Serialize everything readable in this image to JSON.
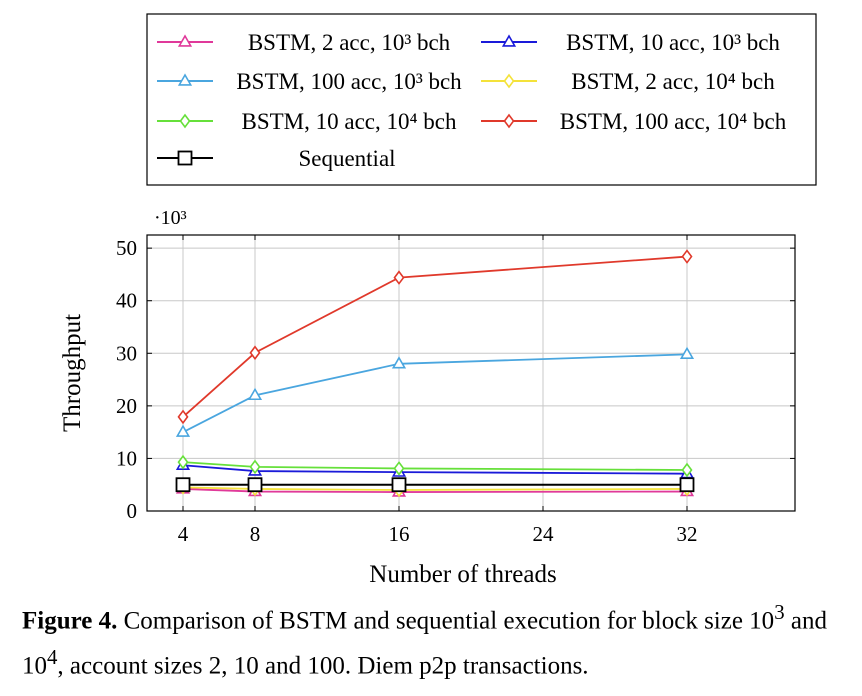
{
  "chart_data": {
    "type": "line",
    "xlabel": "Number of threads",
    "ylabel": "Throughput",
    "y_multiplier": "·10³",
    "x_ticks": [
      4,
      8,
      16,
      24,
      32
    ],
    "y_ticks": [
      0,
      10,
      20,
      30,
      40,
      50
    ],
    "xlim": [
      2,
      38
    ],
    "ylim": [
      0,
      52.5
    ],
    "grid": true,
    "legend_position": "top",
    "x": [
      4,
      8,
      16,
      32
    ],
    "series": [
      {
        "name": "BSTM, 2 acc, 10³ bch",
        "color": "#e0399a",
        "marker": "triangle",
        "values": [
          4.2,
          3.7,
          3.6,
          3.7
        ]
      },
      {
        "name": "BSTM, 10 acc, 10³ bch",
        "color": "#1a1ad9",
        "marker": "triangle",
        "values": [
          8.7,
          7.6,
          7.4,
          7.1
        ]
      },
      {
        "name": "BSTM, 100 acc, 10³ bch",
        "color": "#4aa6df",
        "marker": "triangle",
        "values": [
          15.0,
          22.0,
          28.0,
          29.8
        ]
      },
      {
        "name": "BSTM, 2 acc, 10⁴ bch",
        "color": "#f4e23a",
        "marker": "diamond",
        "values": [
          4.5,
          4.2,
          4.0,
          4.2
        ]
      },
      {
        "name": "BSTM, 10 acc, 10⁴ bch",
        "color": "#66e03a",
        "marker": "diamond",
        "values": [
          9.3,
          8.4,
          8.1,
          7.8
        ]
      },
      {
        "name": "BSTM, 100 acc, 10⁴ bch",
        "color": "#e0392b",
        "marker": "diamond",
        "values": [
          17.9,
          30.1,
          44.4,
          48.4
        ]
      },
      {
        "name": "Sequential",
        "color": "#000000",
        "marker": "square",
        "values": [
          5.0,
          5.0,
          5.0,
          5.0
        ]
      }
    ]
  },
  "caption": {
    "label": "Figure 4.",
    "text_a": " Comparison of BSTM and sequential execution for block size 10",
    "sup_a": "3",
    "text_b": " and 10",
    "sup_b": "4",
    "text_c": ", account sizes 2, 10 and 100. Diem p2p transactions."
  }
}
